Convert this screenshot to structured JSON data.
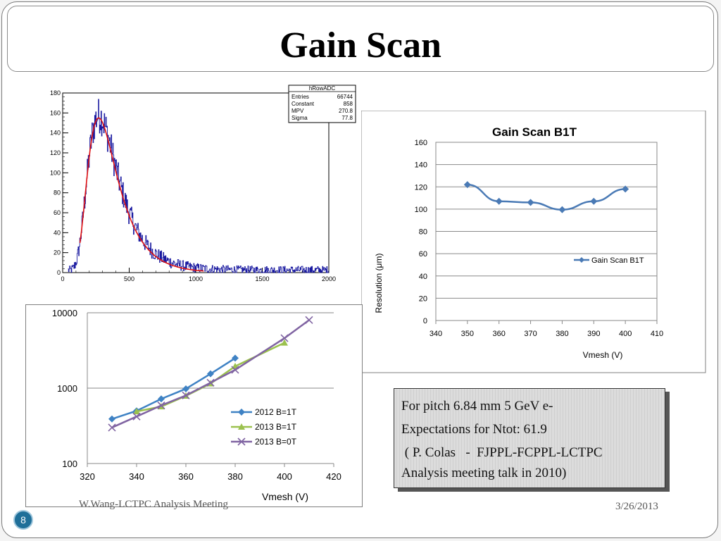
{
  "slide": {
    "title": "Gain Scan",
    "footer_left": "W.Wang-LCTPC Analysis Meeting",
    "footer_right": "3/26/2013",
    "page_number": "8",
    "note_lines": [
      "For pitch 6.84 mm 5 GeV e-",
      "Expectations for Ntot: 61.9",
      " ( P. Colas   -  FJPPL-FCPPL-LCTPC",
      "Analysis meeting  talk in 2010)"
    ]
  },
  "chart_data": [
    {
      "type": "histogram",
      "stats_box": {
        "title": "hRowADC",
        "rows": [
          {
            "label": "Entries",
            "value": "66744"
          },
          {
            "label": "Constant",
            "value": "858"
          },
          {
            "label": "MPV",
            "value": "270.8"
          },
          {
            "label": "Sigma",
            "value": "77.8"
          }
        ]
      },
      "xlim": [
        0,
        2000
      ],
      "ylim": [
        0,
        180
      ],
      "x_ticks": [
        "0",
        "500",
        "1000",
        "1500",
        "2000"
      ],
      "y_ticks": [
        "0",
        "20",
        "40",
        "60",
        "80",
        "100",
        "120",
        "140",
        "160",
        "180"
      ],
      "histogram_color": "#1a1aa0",
      "fit_color": "#e01010",
      "fit": {
        "function": "landau",
        "constant": 858,
        "mpv": 270.8,
        "sigma": 77.8,
        "peak": 155,
        "range": [
          130,
          1060
        ]
      }
    },
    {
      "type": "line",
      "title": "Gain Scan B1T",
      "xlabel": "Vmesh (V)",
      "ylabel": "Resolution (μm)",
      "xlim": [
        340,
        410
      ],
      "ylim": [
        0,
        160
      ],
      "x_ticks": [
        "340",
        "350",
        "360",
        "370",
        "380",
        "390",
        "400",
        "410"
      ],
      "y_ticks": [
        "0",
        "20",
        "40",
        "60",
        "80",
        "100",
        "120",
        "140",
        "160"
      ],
      "legend_position": "right",
      "grid": true,
      "series": [
        {
          "name": "Gain Scan B1T",
          "color": "#4a7ab5",
          "marker": "diamond",
          "x": [
            350,
            360,
            370,
            380,
            390,
            400
          ],
          "y": [
            122,
            107,
            106,
            99.5,
            107,
            118
          ]
        }
      ]
    },
    {
      "type": "line",
      "xlabel": "Vmesh (V)",
      "y_scale": "log",
      "xlim": [
        320,
        420
      ],
      "ylim": [
        100,
        10000
      ],
      "x_ticks": [
        "320",
        "340",
        "360",
        "380",
        "400",
        "420"
      ],
      "y_ticks": [
        "100",
        "1000",
        "10000"
      ],
      "legend_position": "right",
      "series": [
        {
          "name": "2012 B=1T",
          "color": "#3f82c4",
          "marker": "diamond",
          "x": [
            330,
            340,
            350,
            360,
            370,
            380
          ],
          "y": [
            390,
            500,
            720,
            980,
            1550,
            2500
          ]
        },
        {
          "name": "2013 B=1T",
          "color": "#9bc14e",
          "marker": "triangle",
          "x": [
            340,
            350,
            360,
            370,
            380,
            400
          ],
          "y": [
            490,
            570,
            790,
            1150,
            1950,
            4000
          ]
        },
        {
          "name": "2013 B=0T",
          "color": "#8064a2",
          "marker": "x",
          "x": [
            330,
            340,
            350,
            360,
            370,
            380,
            400,
            410
          ],
          "y": [
            300,
            420,
            590,
            800,
            1180,
            1750,
            4600,
            8000
          ]
        }
      ]
    }
  ]
}
